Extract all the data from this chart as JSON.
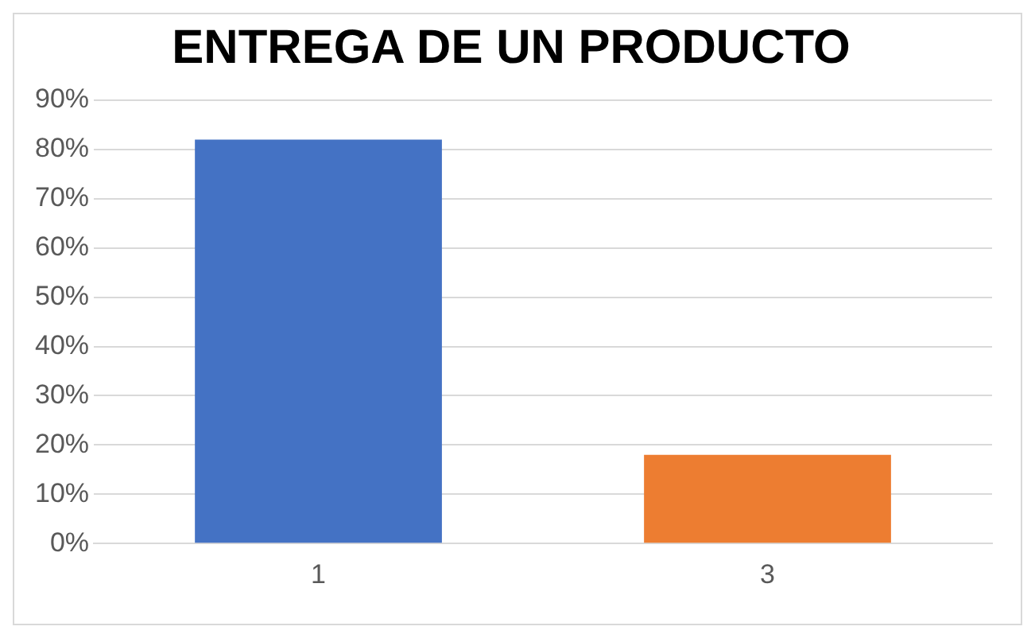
{
  "chart_data": {
    "type": "bar",
    "title": "ENTREGA DE UN PRODUCTO",
    "categories": [
      "1",
      "3"
    ],
    "values": [
      82,
      18
    ],
    "colors": [
      "#4472c4",
      "#ed7d31"
    ],
    "ylim": [
      0,
      90
    ],
    "yticks": [
      {
        "value": 0,
        "label": "0%"
      },
      {
        "value": 10,
        "label": "10%"
      },
      {
        "value": 20,
        "label": "20%"
      },
      {
        "value": 30,
        "label": "30%"
      },
      {
        "value": 40,
        "label": "40%"
      },
      {
        "value": 50,
        "label": "50%"
      },
      {
        "value": 60,
        "label": "60%"
      },
      {
        "value": 70,
        "label": "70%"
      },
      {
        "value": 80,
        "label": "80%"
      },
      {
        "value": 90,
        "label": "90%"
      }
    ],
    "grid": "y",
    "legend": false
  }
}
